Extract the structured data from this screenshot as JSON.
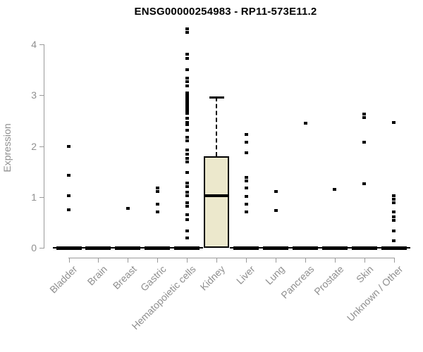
{
  "chart_data": {
    "type": "boxplot",
    "title": "ENSG00000254983 - RP11-573E11.2",
    "ylabel": "Expression",
    "ylim": [
      0,
      4.35
    ],
    "yticks": [
      0,
      1,
      2,
      3,
      4
    ],
    "grid": false,
    "legend": "none",
    "colors": {
      "box_fill": "#ece8cc",
      "box_border": "#000000",
      "point": "#000000",
      "axis": "#9a9a9a",
      "label": "#8f8f8f",
      "title": "#000000"
    },
    "categories": [
      "Bladder",
      "Brain",
      "Breast",
      "Gastric",
      "Hematopoietic cells",
      "Kidney",
      "Liver",
      "Lung",
      "Pancreas",
      "Prostate",
      "Skin",
      "Unknown / Other"
    ],
    "boxes": [
      {
        "category": "Bladder",
        "q1": 0,
        "median": 0,
        "q3": 0,
        "whisker_low": 0,
        "whisker_high": 0,
        "outliers": [
          1.99,
          1.43,
          1.02,
          0.75
        ]
      },
      {
        "category": "Brain",
        "q1": 0,
        "median": 0,
        "q3": 0,
        "whisker_low": 0,
        "whisker_high": 0,
        "outliers": []
      },
      {
        "category": "Breast",
        "q1": 0,
        "median": 0,
        "q3": 0,
        "whisker_low": 0,
        "whisker_high": 0,
        "outliers": [
          0.77
        ]
      },
      {
        "category": "Gastric",
        "q1": 0,
        "median": 0,
        "q3": 0,
        "whisker_low": 0,
        "whisker_high": 0,
        "outliers": [
          1.18,
          1.11,
          0.86,
          0.7
        ]
      },
      {
        "category": "Hematopoietic cells",
        "q1": 0,
        "median": 0,
        "q3": 0,
        "whisker_low": 0,
        "whisker_high": 0,
        "outliers": [
          4.3,
          4.24,
          3.8,
          3.72,
          3.5,
          3.33,
          3.26,
          3.19,
          3.05,
          3.01,
          2.97,
          2.93,
          2.89,
          2.85,
          2.81,
          2.77,
          2.73,
          2.69,
          2.65,
          2.54,
          2.47,
          2.42,
          2.31,
          2.17,
          2.1,
          1.92,
          1.84,
          1.76,
          1.69,
          1.48,
          1.28,
          1.21,
          1.09,
          1.02,
          0.88,
          0.81,
          0.65,
          0.56,
          0.33,
          0.19
        ]
      },
      {
        "category": "Kidney",
        "q1": 0,
        "median": 1.02,
        "q3": 1.8,
        "whisker_low": 0,
        "whisker_high": 2.96,
        "outliers": []
      },
      {
        "category": "Liver",
        "q1": 0,
        "median": 0,
        "q3": 0,
        "whisker_low": 0,
        "whisker_high": 0,
        "outliers": [
          2.23,
          2.07,
          1.87,
          1.39,
          1.31,
          1.18,
          1.01,
          0.86,
          0.71
        ]
      },
      {
        "category": "Lung",
        "q1": 0,
        "median": 0,
        "q3": 0,
        "whisker_low": 0,
        "whisker_high": 0,
        "outliers": [
          1.11,
          0.73
        ]
      },
      {
        "category": "Pancreas",
        "q1": 0,
        "median": 0,
        "q3": 0,
        "whisker_low": 0,
        "whisker_high": 0,
        "outliers": [
          2.45
        ]
      },
      {
        "category": "Prostate",
        "q1": 0,
        "median": 0,
        "q3": 0,
        "whisker_low": 0,
        "whisker_high": 0,
        "outliers": [
          1.15
        ]
      },
      {
        "category": "Skin",
        "q1": 0,
        "median": 0,
        "q3": 0,
        "whisker_low": 0,
        "whisker_high": 0,
        "outliers": [
          2.63,
          2.56,
          2.07,
          1.26
        ]
      },
      {
        "category": "Unknown / Other",
        "q1": 0,
        "median": 0,
        "q3": 0,
        "whisker_low": 0,
        "whisker_high": 0,
        "outliers": [
          2.47,
          1.03,
          0.95,
          0.88,
          0.7,
          0.61,
          0.54,
          0.33,
          0.14
        ]
      }
    ]
  }
}
